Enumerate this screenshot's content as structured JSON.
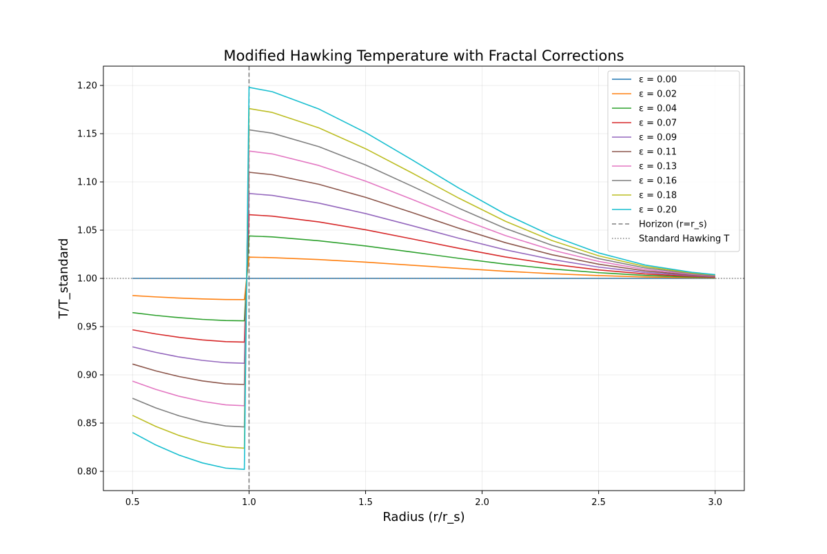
{
  "chart_data": {
    "type": "line",
    "title": "Modified Hawking Temperature with Fractal Corrections",
    "xlabel": "Radius (r/r_s)",
    "ylabel": "T/T_standard",
    "xlim": [
      0.375,
      3.125
    ],
    "ylim": [
      0.78,
      1.22
    ],
    "xticks": [
      "0.5",
      "1.0",
      "1.5",
      "2.0",
      "2.5",
      "3.0"
    ],
    "yticks": [
      "0.80",
      "0.85",
      "0.90",
      "0.95",
      "1.00",
      "1.05",
      "1.10",
      "1.15",
      "1.20"
    ],
    "grid": true,
    "legend_position": "top-right",
    "x": [
      0.5,
      0.6,
      0.7,
      0.8,
      0.9,
      0.98,
      1.0,
      1.1,
      1.3,
      1.5,
      1.7,
      1.9,
      2.1,
      2.3,
      2.5,
      2.7,
      2.9,
      3.0
    ],
    "series": [
      {
        "name": "ε = 0.00",
        "color": "#1f77b4",
        "values": [
          1.0,
          1.0,
          1.0,
          1.0,
          1.0,
          1.0,
          1.0,
          1.0,
          1.0,
          1.0,
          1.0,
          1.0,
          1.0,
          1.0,
          1.0,
          1.0,
          1.0,
          1.0
        ]
      },
      {
        "name": "ε = 0.02",
        "color": "#ff7f0e",
        "values": [
          0.9822,
          0.9808,
          0.9796,
          0.9787,
          0.9781,
          0.978,
          1.022,
          1.0215,
          1.0195,
          1.0168,
          1.0136,
          1.0104,
          1.0074,
          1.0049,
          1.0029,
          1.0015,
          1.0007,
          1.0004
        ]
      },
      {
        "name": "ε = 0.04",
        "color": "#2ca02c",
        "values": [
          0.9645,
          0.9616,
          0.9593,
          0.9575,
          0.9563,
          0.956,
          1.044,
          1.043,
          1.039,
          1.0336,
          1.0273,
          1.0208,
          1.0148,
          1.0098,
          1.0059,
          1.0031,
          1.0014,
          1.0009
        ]
      },
      {
        "name": "ε = 0.07",
        "color": "#d62728",
        "values": [
          0.9467,
          0.9424,
          0.9389,
          0.9362,
          0.9344,
          0.934,
          1.066,
          1.0645,
          1.0585,
          1.0504,
          1.0409,
          1.0312,
          1.0222,
          1.0147,
          1.0088,
          1.0046,
          1.0021,
          1.0013
        ]
      },
      {
        "name": "ε = 0.09",
        "color": "#9467bd",
        "values": [
          0.929,
          0.9233,
          0.9185,
          0.915,
          0.9126,
          0.912,
          1.088,
          1.086,
          1.078,
          1.0672,
          1.0546,
          1.0416,
          1.0296,
          1.0196,
          1.0117,
          1.0062,
          1.0028,
          1.0017
        ]
      },
      {
        "name": "ε = 0.11",
        "color": "#8c564b",
        "values": [
          0.9112,
          0.9041,
          0.8982,
          0.8937,
          0.8907,
          0.89,
          1.11,
          1.1075,
          1.0975,
          1.084,
          1.0682,
          1.052,
          1.037,
          1.0245,
          1.0147,
          1.0077,
          1.0035,
          1.0022
        ]
      },
      {
        "name": "ε = 0.13",
        "color": "#e377c2",
        "values": [
          0.8935,
          0.8849,
          0.8778,
          0.8725,
          0.8689,
          0.868,
          1.132,
          1.129,
          1.117,
          1.1008,
          1.0819,
          1.0624,
          1.0444,
          1.0294,
          1.0176,
          1.0092,
          1.0042,
          1.0026
        ]
      },
      {
        "name": "ε = 0.16",
        "color": "#7f7f7f",
        "values": [
          0.8757,
          0.8657,
          0.8575,
          0.8512,
          0.847,
          0.846,
          1.154,
          1.1505,
          1.1365,
          1.1176,
          1.0955,
          1.0728,
          1.0518,
          1.0343,
          1.0205,
          1.0108,
          1.0049,
          1.003
        ]
      },
      {
        "name": "ε = 0.18",
        "color": "#bcbd22",
        "values": [
          0.858,
          0.8465,
          0.8371,
          0.83,
          0.8252,
          0.824,
          1.176,
          1.172,
          1.156,
          1.1344,
          1.1092,
          1.0832,
          1.0592,
          1.0392,
          1.0234,
          1.0123,
          1.0056,
          1.0035
        ]
      },
      {
        "name": "ε = 0.20",
        "color": "#17becf",
        "values": [
          0.8402,
          0.8273,
          0.8168,
          0.8087,
          0.8033,
          0.802,
          1.198,
          1.1935,
          1.1755,
          1.1512,
          1.1228,
          1.0936,
          1.0666,
          1.0441,
          1.0264,
          1.0138,
          1.0063,
          1.0039
        ]
      }
    ],
    "reference_lines": [
      {
        "name": "Horizon (r=r_s)",
        "orientation": "vertical",
        "value": 1.0,
        "style": "dashed",
        "color": "#7f7f7f"
      },
      {
        "name": "Standard Hawking T",
        "orientation": "horizontal",
        "value": 1.0,
        "style": "dotted",
        "color": "#7f7f7f"
      }
    ]
  }
}
